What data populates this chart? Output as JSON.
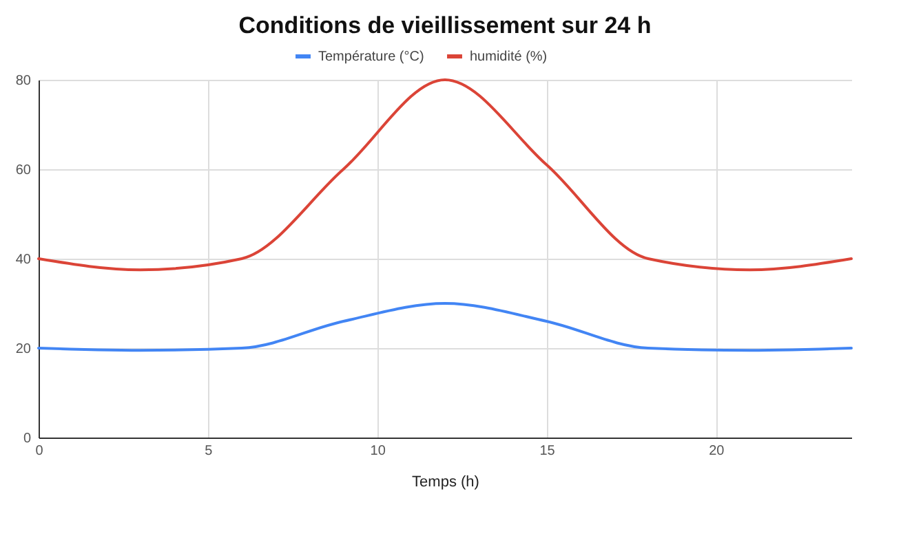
{
  "chart_data": {
    "type": "line",
    "title": "Conditions de vieillissement sur 24 h",
    "xlabel": "Temps (h)",
    "x": [
      0,
      3,
      6,
      9,
      12,
      15,
      18,
      21,
      24
    ],
    "series": [
      {
        "name": "Température (°C)",
        "color": "#4285f4",
        "values": [
          20,
          19.5,
          20,
          26,
          30,
          26,
          20,
          19.5,
          20
        ]
      },
      {
        "name": "humidité (%)",
        "color": "#db4437",
        "values": [
          40,
          37.5,
          40,
          60,
          80,
          61,
          40,
          37.5,
          40
        ]
      }
    ],
    "xlim": [
      0,
      24
    ],
    "xticks": [
      0,
      5,
      10,
      15,
      20
    ],
    "ylim": [
      0,
      80
    ],
    "yticks": [
      0,
      20,
      40,
      60,
      80
    ],
    "grid": true,
    "legend": "top",
    "marker": "none",
    "line_style": "solid"
  }
}
